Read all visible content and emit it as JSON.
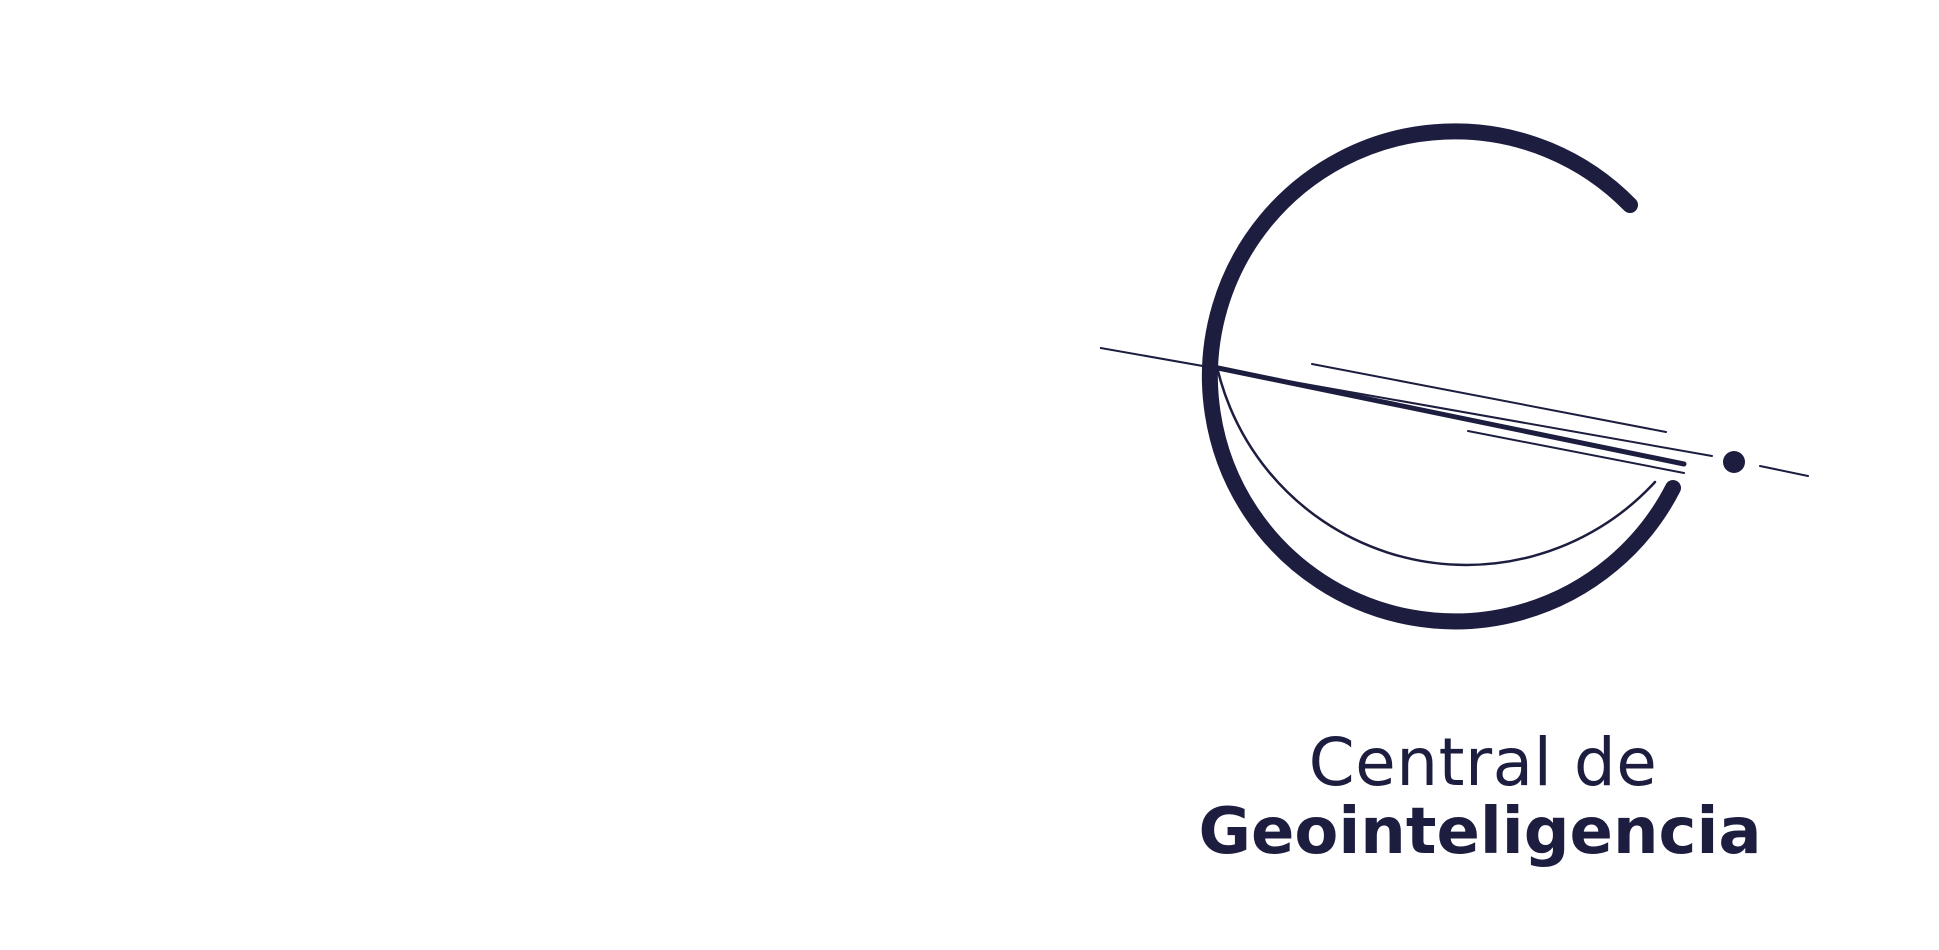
{
  "brand": {
    "line1": "Central de",
    "line2": "Geointeligencia",
    "color": "#1c1d3f",
    "background": "#ffffff",
    "mark": "planet-orbit-g-logo"
  }
}
